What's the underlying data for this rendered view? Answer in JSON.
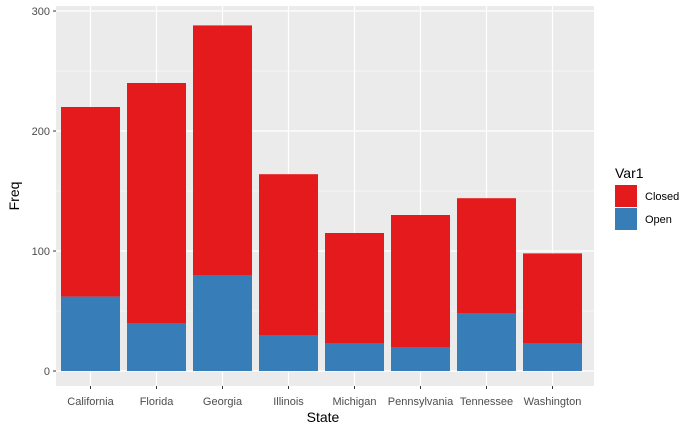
{
  "chart_data": {
    "type": "bar",
    "stacked": true,
    "xlabel": "State",
    "ylabel": "Freq",
    "categories": [
      "California",
      "Florida",
      "Georgia",
      "Illinois",
      "Michigan",
      "Pennsylvania",
      "Tennessee",
      "Washington"
    ],
    "series": [
      {
        "name": "Closed",
        "color": "#e41a1c",
        "values": [
          158,
          200,
          208,
          134,
          92,
          110,
          96,
          75
        ]
      },
      {
        "name": "Open",
        "color": "#377eb8",
        "values": [
          62,
          40,
          80,
          30,
          23,
          20,
          48,
          23
        ]
      }
    ],
    "ylim": [
      0,
      300
    ],
    "yticks": [
      0,
      100,
      200,
      300
    ],
    "grid": true,
    "legend": {
      "title": "Var1",
      "placement": "right"
    },
    "panel_background": "#ebebeb",
    "grid_color": "#ffffff"
  }
}
